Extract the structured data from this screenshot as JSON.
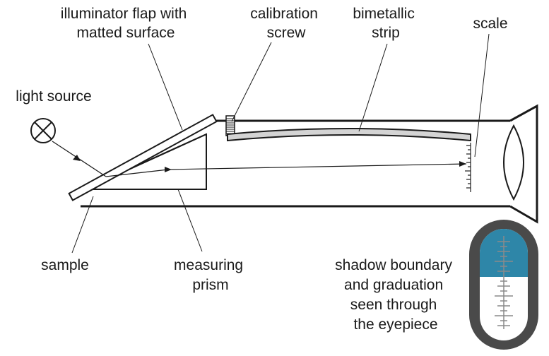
{
  "labels": {
    "illuminator_flap": [
      "illuminator flap with",
      "matted surface"
    ],
    "calibration_screw": [
      "calibration",
      "screw"
    ],
    "bimetallic_strip": [
      "bimetallic",
      "strip"
    ],
    "scale": [
      "scale"
    ],
    "light_source": [
      "light source"
    ],
    "sample": [
      "sample"
    ],
    "measuring_prism": [
      "measuring",
      "prism"
    ],
    "eyepiece_view": [
      "shadow boundary",
      "and graduation",
      "seen through",
      "the eyepiece"
    ]
  },
  "colors": {
    "line": "#1a1a1a",
    "strip_fill": "#d4d4d4",
    "eyepiece_frame": "#4a4a4a",
    "shadow_region": "#2e86a8",
    "scale_marks": "#8a8a8a"
  },
  "icons": {
    "light_source": "crossed-circle-lamp-icon",
    "eyepiece_lens": "biconvex-lens-icon"
  }
}
